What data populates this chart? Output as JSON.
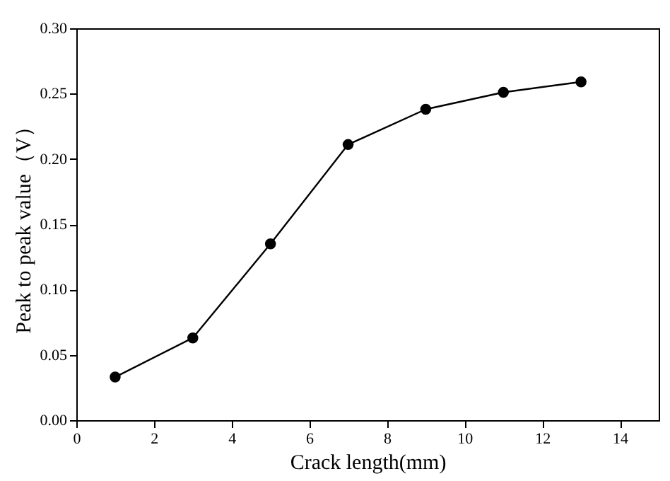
{
  "chart_data": {
    "type": "line",
    "xlabel": "Crack length(mm)",
    "ylabel": "Peak to peak value（V）",
    "x": [
      1,
      3,
      5,
      7,
      9,
      11,
      13
    ],
    "series": [
      {
        "color": "#000000",
        "values": [
          0.033,
          0.063,
          0.135,
          0.211,
          0.238,
          0.251,
          0.259
        ]
      }
    ],
    "xlim": [
      0,
      15
    ],
    "xticks": [
      0,
      2,
      4,
      6,
      8,
      10,
      12,
      14
    ],
    "ylim": [
      0,
      0.3
    ],
    "yticks": [
      {
        "value": 0,
        "label": "0.00"
      },
      {
        "value": 0.05,
        "label": "0.05"
      },
      {
        "value": 0.1,
        "label": "0.10"
      },
      {
        "value": 0.15,
        "label": "0.15"
      },
      {
        "value": 0.2,
        "label": "0.20"
      },
      {
        "value": 0.25,
        "label": "0.25"
      },
      {
        "value": 0.3,
        "label": "0.30"
      }
    ],
    "marker": "circle",
    "line_style": "solid",
    "grid": false,
    "legend": false
  }
}
